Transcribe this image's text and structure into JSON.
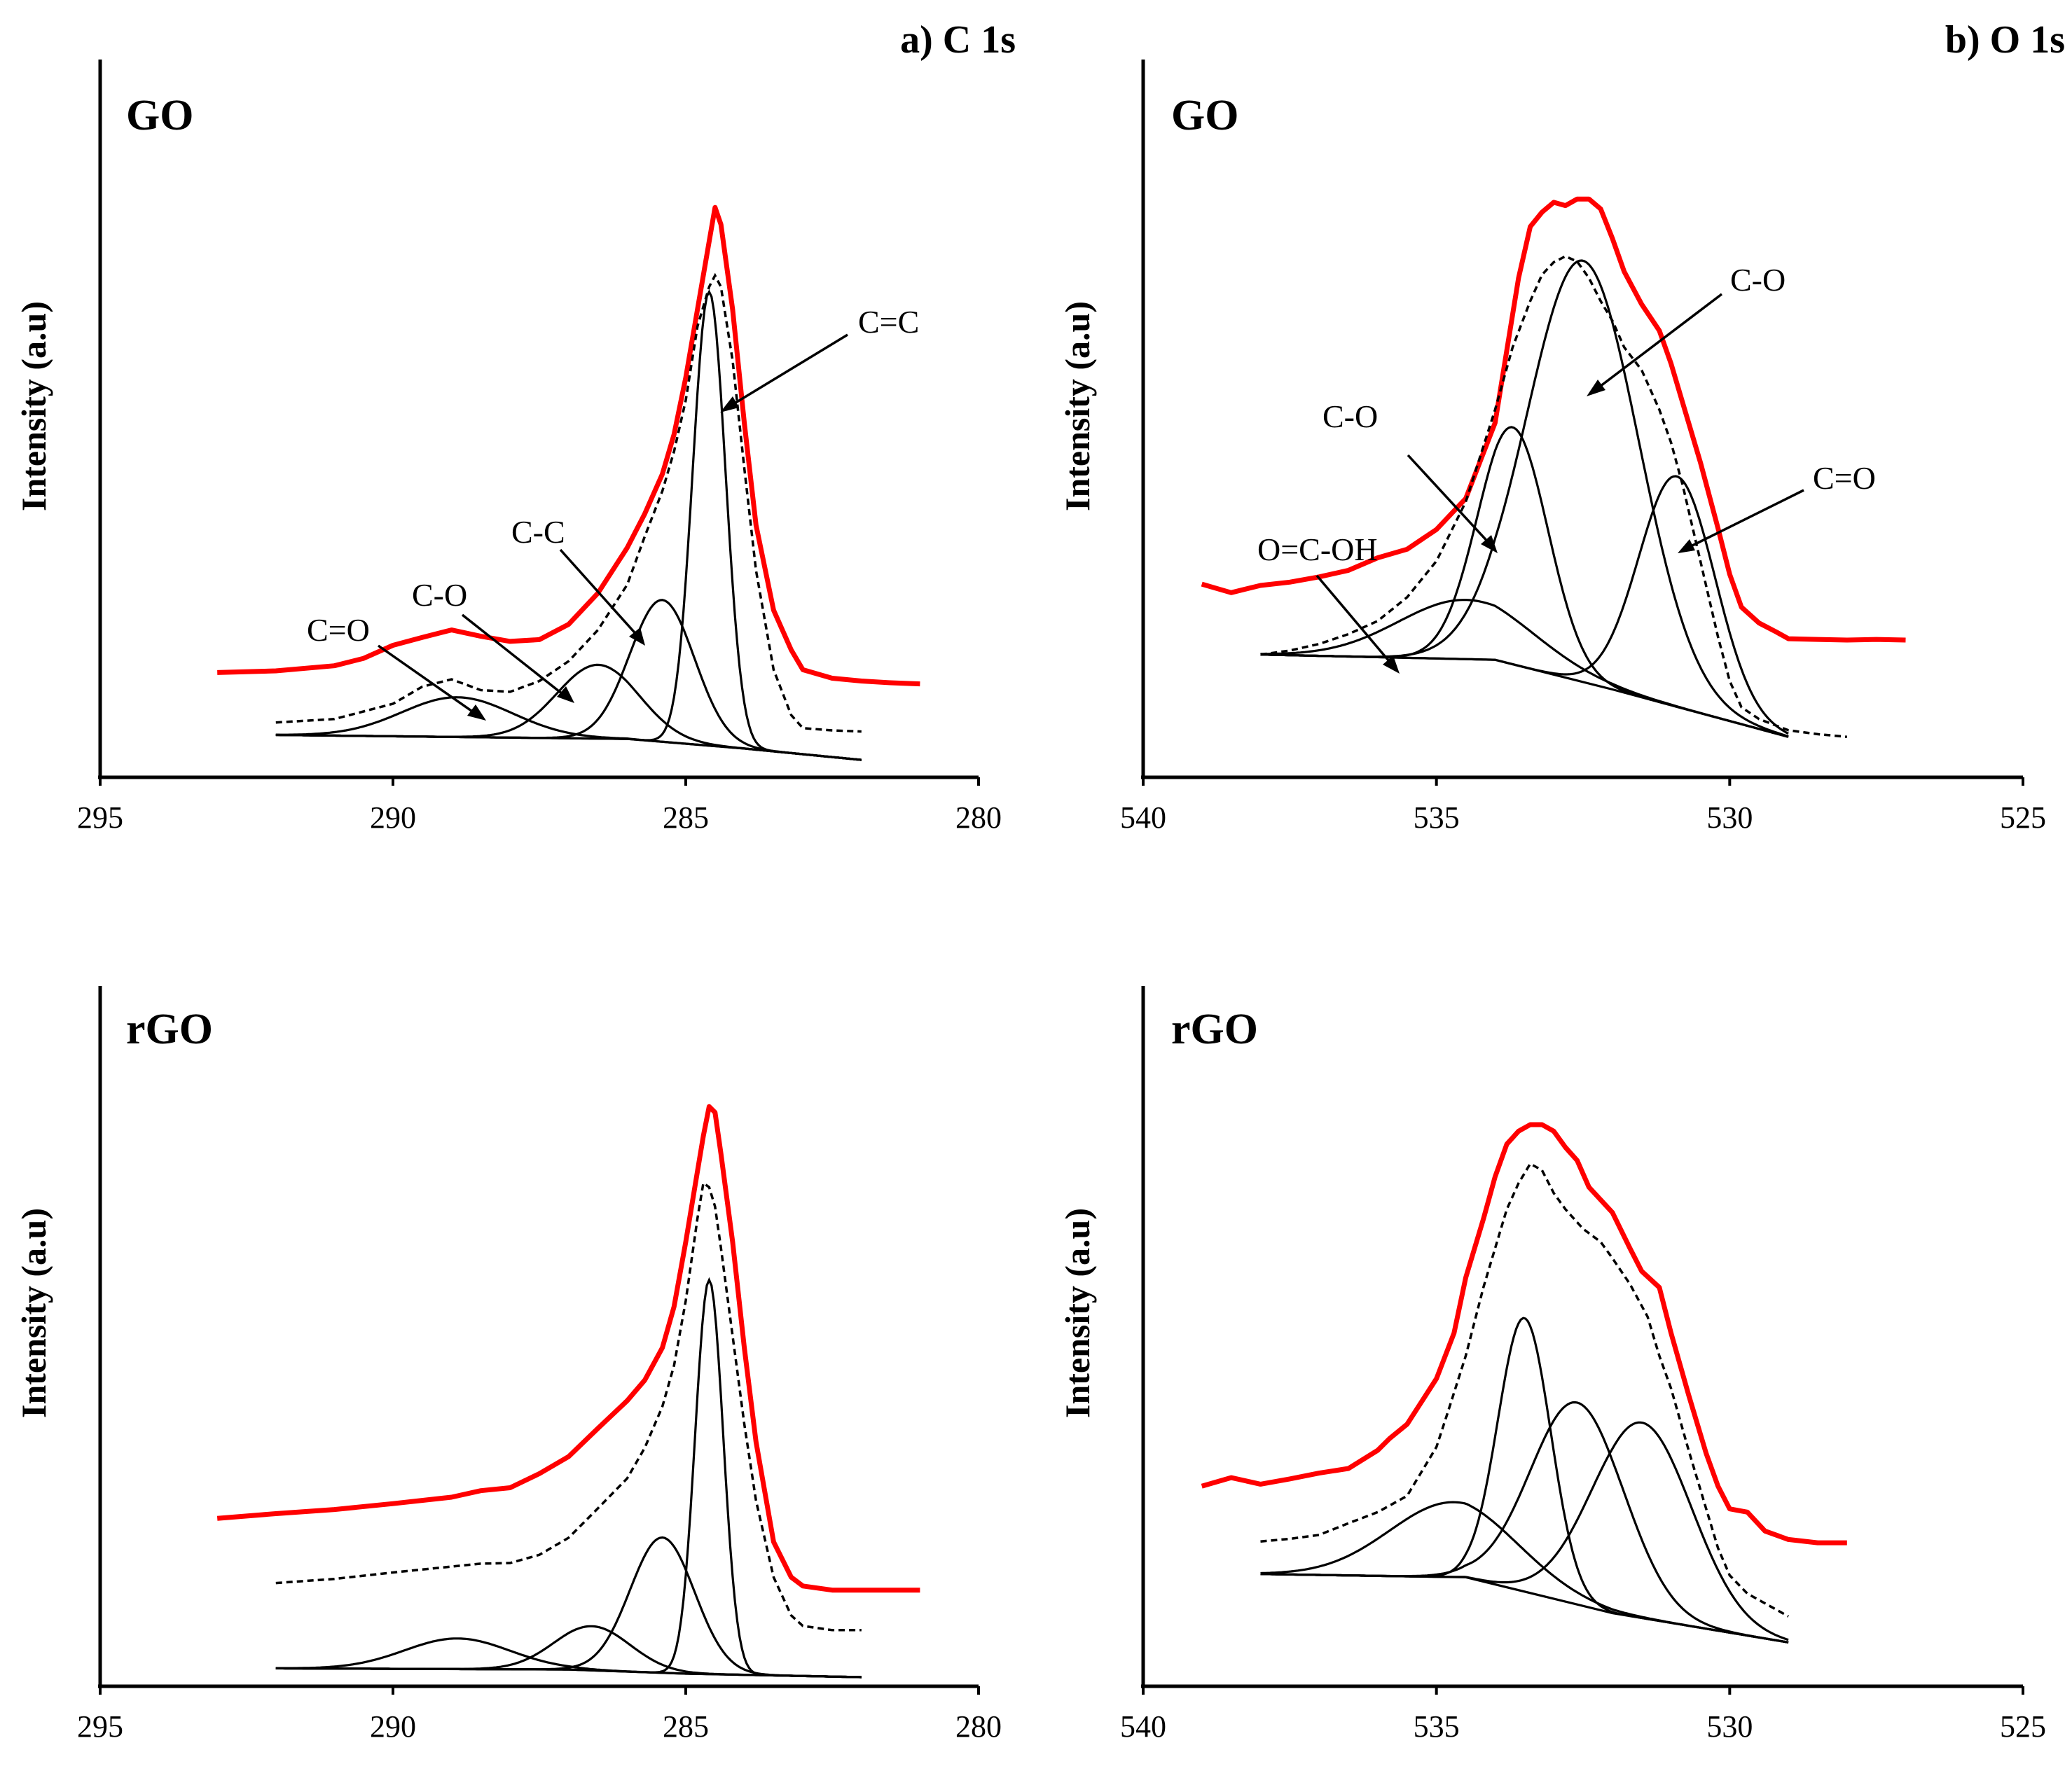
{
  "figure": {
    "panel_titles": [
      "a) C 1s",
      "b) O 1s"
    ]
  },
  "chart_data": [
    {
      "type": "line",
      "panel": "a) C 1s",
      "sample": "GO",
      "title": "a) C 1s",
      "xlabel": "",
      "ylabel": "Intensity (a.u)",
      "xlim": [
        295,
        280
      ],
      "x_reversed": true,
      "ylim": [
        0,
        100
      ],
      "xticks": [
        "295",
        "290",
        "285",
        "280"
      ],
      "ytick_labels": false,
      "series": [
        {
          "name": "experimental",
          "color": "#ff0000",
          "style": "solid",
          "x": [
            293,
            292,
            291,
            290.5,
            290,
            289.5,
            289,
            288.5,
            288,
            287.5,
            287,
            286.5,
            286,
            285.7,
            285.4,
            285.2,
            285,
            284.8,
            284.6,
            284.5,
            284.4,
            284.2,
            284,
            283.8,
            283.5,
            283.2,
            283,
            282.5,
            282,
            281.5,
            281
          ],
          "y": [
            16,
            16.3,
            17.2,
            18.5,
            20.8,
            22.2,
            23.5,
            22.4,
            21.5,
            21.8,
            24.5,
            30,
            38,
            44,
            51,
            58,
            68,
            80,
            92,
            98,
            95,
            80,
            60,
            42,
            27,
            20,
            16.5,
            15,
            14.5,
            14.2,
            14
          ]
        },
        {
          "name": "fit envelope",
          "color": "#000000",
          "style": "dashed",
          "x": [
            292,
            291,
            290,
            289.5,
            289,
            288.5,
            288,
            287.5,
            287,
            286.5,
            286,
            285.7,
            285.4,
            285.2,
            285,
            284.8,
            284.6,
            284.5,
            284.4,
            284.2,
            284,
            283.8,
            283.5,
            283.2,
            283,
            282.5,
            282
          ],
          "y": [
            7.2,
            7.8,
            10.5,
            13.5,
            14.8,
            12.9,
            12.6,
            14.5,
            18,
            23.5,
            31.5,
            40,
            48,
            55,
            64,
            77,
            84,
            86,
            84,
            71,
            52,
            34,
            16.5,
            8.5,
            6.2,
            5.8,
            5.6
          ]
        }
      ],
      "components": [
        {
          "label": "C=C",
          "center": 284.6,
          "height": 80
        },
        {
          "label": "C-C",
          "center": 285.4,
          "height": 25
        },
        {
          "label": "C-O",
          "center": 286.5,
          "height": 13
        },
        {
          "label": "C=O",
          "center": 288.9,
          "height": 7
        }
      ],
      "baseline": {
        "x": [
          292,
          286,
          284,
          282
        ],
        "y": [
          5,
          4.3,
          2.6,
          0.6
        ]
      },
      "annotations": [
        "C=C",
        "C-C",
        "C-O",
        "C=O"
      ]
    },
    {
      "type": "line",
      "panel": "b) O 1s",
      "sample": "GO",
      "title": "b) O 1s",
      "xlabel": "",
      "ylabel": "Intensity (a.u)",
      "xlim": [
        540,
        525
      ],
      "x_reversed": true,
      "ylim": [
        0,
        100
      ],
      "xticks": [
        "540",
        "535",
        "530",
        "525"
      ],
      "ytick_labels": false,
      "series": [
        {
          "name": "experimental",
          "color": "#ff0000",
          "style": "solid",
          "x": [
            539,
            538.5,
            538,
            537.5,
            537,
            536.5,
            536,
            535.5,
            535,
            534.5,
            534,
            533.8,
            533.6,
            533.4,
            533.2,
            533,
            532.8,
            532.6,
            532.4,
            532.2,
            532,
            531.8,
            531.5,
            531.2,
            531,
            530.8,
            530.5,
            530.2,
            530,
            529.8,
            529.5,
            529.2,
            529,
            528.5,
            528,
            527.5,
            527
          ],
          "y": [
            23.5,
            22.2,
            23.3,
            23.8,
            24.6,
            25.6,
            27.5,
            28.8,
            31.8,
            36.5,
            48,
            59,
            70,
            77.8,
            80,
            81.5,
            81,
            82,
            82,
            80.5,
            76,
            71,
            66,
            62,
            57,
            51,
            42,
            32,
            25,
            20,
            17.6,
            16.2,
            15.2,
            15.1,
            15,
            15.1,
            15
          ]
        },
        {
          "name": "fit envelope",
          "color": "#000000",
          "style": "dashed",
          "x": [
            538,
            537.5,
            537,
            536.5,
            536,
            535.5,
            535,
            534.5,
            534,
            533.7,
            533.4,
            533.2,
            533,
            532.8,
            532.6,
            532.4,
            532.2,
            532,
            531.8,
            531.5,
            531.2,
            531,
            530.8,
            530.5,
            530.2,
            530,
            529.8,
            529.5,
            529,
            528.5,
            528
          ],
          "y": [
            12.8,
            13.4,
            14.4,
            15.9,
            17.9,
            21.5,
            27,
            36,
            50,
            59.5,
            66.5,
            70.5,
            72.4,
            73.3,
            72.5,
            70,
            66.5,
            63.5,
            59.5,
            56,
            50,
            45,
            38.5,
            27,
            15.5,
            8.8,
            4.8,
            3,
            1.3,
            0.7,
            0.3
          ]
        }
      ],
      "components": [
        {
          "label": "C-O",
          "center": 532.5,
          "height": 64
        },
        {
          "label": "C-O",
          "center": 533.7,
          "height": 36
        },
        {
          "label": "C=O",
          "center": 530.9,
          "height": 35
        },
        {
          "label": "O=C-OH",
          "center": 534.5,
          "height": 9
        }
      ],
      "baseline": {
        "x": [
          538,
          534,
          532,
          529
        ],
        "y": [
          12.8,
          12,
          7.5,
          0.3
        ]
      },
      "annotations": [
        "C-O",
        "C-O",
        "C=O",
        "O=C-OH"
      ]
    },
    {
      "type": "line",
      "panel": "a) C 1s",
      "sample": "rGO",
      "title": "",
      "xlabel": "",
      "ylabel": "Intensity (a.u)",
      "xlim": [
        295,
        280
      ],
      "x_reversed": true,
      "ylim": [
        0,
        100
      ],
      "xticks": [
        "295",
        "290",
        "285",
        "280"
      ],
      "ytick_labels": false,
      "series": [
        {
          "name": "experimental",
          "color": "#ff0000",
          "style": "solid",
          "x": [
            293,
            292,
            291,
            290,
            289,
            288.5,
            288,
            287.5,
            287,
            286.5,
            286,
            285.7,
            285.4,
            285.2,
            285,
            284.8,
            284.7,
            284.6,
            284.5,
            284.4,
            284.2,
            284,
            283.8,
            283.5,
            283.2,
            283,
            282.5,
            282,
            281.5,
            281
          ],
          "y": [
            27,
            27.8,
            28.5,
            29.5,
            30.6,
            31.7,
            32.2,
            34.6,
            37.5,
            42.3,
            47,
            50.5,
            56,
            63,
            74,
            86,
            92,
            97,
            96,
            89,
            74,
            56,
            40,
            23,
            17,
            15.5,
            14.8,
            14.8,
            14.8,
            14.8
          ]
        },
        {
          "name": "fit envelope",
          "color": "#000000",
          "style": "dashed",
          "x": [
            292,
            291,
            290,
            289,
            288.5,
            288,
            287.5,
            287,
            286.5,
            286,
            285.7,
            285.4,
            285.2,
            285,
            284.8,
            284.7,
            284.6,
            284.5,
            284.4,
            284.2,
            284,
            283.8,
            283.5,
            283.2,
            283,
            282.5,
            282
          ],
          "y": [
            16,
            16.7,
            17.8,
            18.8,
            19.3,
            19.4,
            20.8,
            23.7,
            28.7,
            33.8,
            39,
            46,
            53,
            64,
            78,
            84,
            83.3,
            80,
            73,
            58,
            43,
            30,
            17,
            10.5,
            8.7,
            8,
            8
          ]
        }
      ],
      "components": [
        {
          "label": "",
          "center": 284.6,
          "height": 67
        },
        {
          "label": "",
          "center": 285.4,
          "height": 23
        },
        {
          "label": "",
          "center": 286.6,
          "height": 7.5
        },
        {
          "label": "",
          "center": 288.9,
          "height": 5.2
        }
      ],
      "baseline": {
        "x": [
          292,
          287,
          285,
          282
        ],
        "y": [
          1.5,
          1.3,
          0.6,
          0
        ]
      },
      "annotations": []
    },
    {
      "type": "line",
      "panel": "b) O 1s",
      "sample": "rGO",
      "title": "",
      "xlabel": "",
      "ylabel": "Intensity (a.u)",
      "xlim": [
        540,
        525
      ],
      "x_reversed": true,
      "ylim": [
        0,
        100
      ],
      "xticks": [
        "540",
        "535",
        "530",
        "525"
      ],
      "ytick_labels": false,
      "series": [
        {
          "name": "experimental",
          "color": "#ff0000",
          "style": "solid",
          "x": [
            539,
            538.5,
            538,
            537.5,
            537,
            536.5,
            536,
            535.8,
            535.5,
            535,
            534.7,
            534.5,
            534.2,
            534,
            533.8,
            533.6,
            533.4,
            533.2,
            533,
            532.8,
            532.6,
            532.4,
            532,
            531.7,
            531.5,
            531.2,
            531,
            530.7,
            530.4,
            530.2,
            530,
            529.7,
            529.4,
            529,
            528.5,
            528
          ],
          "y": [
            24.5,
            25.8,
            24.8,
            25.6,
            26.5,
            27.2,
            30,
            31.8,
            34,
            41,
            48,
            56.5,
            65.5,
            72,
            77,
            79,
            80,
            80,
            79,
            76.5,
            74.5,
            70.4,
            66.5,
            61,
            57.5,
            55,
            48,
            38.5,
            29.5,
            24.5,
            21,
            20.5,
            17.6,
            16.3,
            15.8,
            15.8
          ]
        },
        {
          "name": "fit envelope",
          "color": "#000000",
          "style": "dashed",
          "x": [
            538,
            537.5,
            537,
            536.5,
            536,
            535.5,
            535,
            534.8,
            534.5,
            534.2,
            534,
            533.8,
            533.6,
            533.4,
            533.2,
            533,
            532.8,
            532.5,
            532.2,
            532,
            531.7,
            531.4,
            531.2,
            531,
            530.7,
            530.4,
            530.2,
            530,
            529.7,
            529.5,
            529.2,
            529
          ],
          "y": [
            16,
            16.4,
            17,
            18.8,
            20.5,
            23,
            30.5,
            36,
            44.5,
            55,
            61,
            67,
            71,
            74,
            73,
            69.5,
            67,
            64,
            62,
            59.5,
            55.5,
            50.5,
            44.5,
            39.5,
            30,
            21,
            15,
            10.8,
            8,
            7,
            5.5,
            4.5
          ]
        }
      ],
      "components": [
        {
          "label": "",
          "center": 533.5,
          "height": 42
        },
        {
          "label": "",
          "center": 532.6,
          "height": 31
        },
        {
          "label": "",
          "center": 531.5,
          "height": 30
        },
        {
          "label": "",
          "center": 534.7,
          "height": 11.5
        }
      ],
      "baseline": {
        "x": [
          538,
          534.5,
          532,
          529
        ],
        "y": [
          11,
          10.5,
          5,
          0.5
        ]
      },
      "annotations": []
    }
  ]
}
